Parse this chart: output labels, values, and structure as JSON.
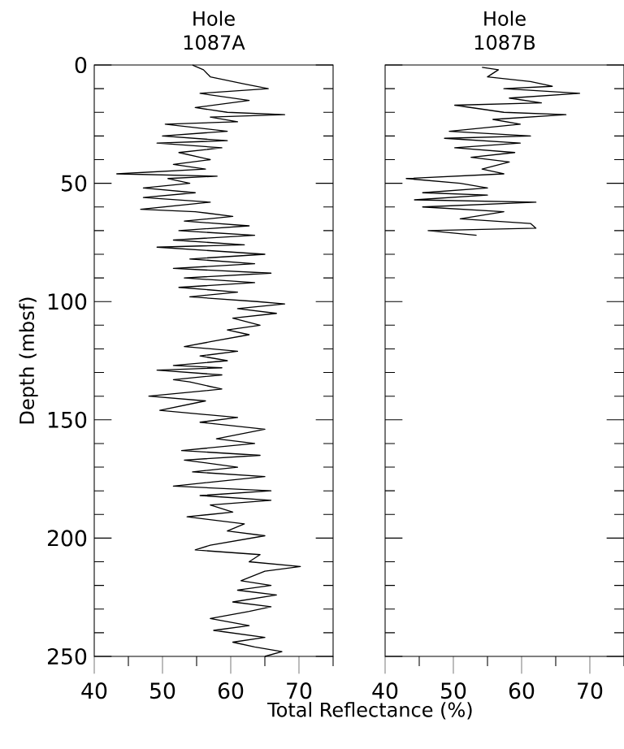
{
  "chart_data": [
    {
      "type": "line",
      "title": "Hole 1087A",
      "xlabel": "Total Reflectance (%)",
      "ylabel": "Depth (mbsf)",
      "xlim": [
        40,
        75
      ],
      "ylim": [
        250,
        0
      ],
      "xticks": [
        40,
        {
          "value": 45,
          "label": null
        },
        50,
        {
          "value": 55,
          "label": null
        },
        60,
        {
          "value": 65,
          "label": null
        },
        70,
        {
          "value": 75,
          "label": null
        }
      ],
      "yticks": [
        0,
        {
          "value": 10,
          "label": null
        },
        {
          "value": 20,
          "label": null
        },
        {
          "value": 30,
          "label": null
        },
        {
          "value": 40,
          "label": null
        },
        50,
        {
          "value": 60,
          "label": null
        },
        {
          "value": 70,
          "label": null
        },
        {
          "value": 80,
          "label": null
        },
        {
          "value": 90,
          "label": null
        },
        100,
        {
          "value": 110,
          "label": null
        },
        {
          "value": 120,
          "label": null
        },
        {
          "value": 130,
          "label": null
        },
        {
          "value": 140,
          "label": null
        },
        150,
        {
          "value": 160,
          "label": null
        },
        {
          "value": 170,
          "label": null
        },
        {
          "value": 180,
          "label": null
        },
        {
          "value": 190,
          "label": null
        },
        200,
        {
          "value": 210,
          "label": null
        },
        {
          "value": 220,
          "label": null
        },
        {
          "value": 230,
          "label": null
        },
        {
          "value": 240,
          "label": null
        },
        250
      ],
      "series": [
        {
          "color": "#000000",
          "x": [
            54.4,
            56,
            57,
            62,
            65.5,
            55.5,
            62.7,
            54.8,
            59.5,
            67.9,
            57,
            61,
            50.4,
            59.5,
            50,
            59.5,
            49.2,
            58.7,
            52.4,
            57,
            51.6,
            56.3,
            43.3,
            58,
            50.8,
            54,
            47.2,
            54.8,
            47.2,
            57,
            46.8,
            54.8,
            60.3,
            53.2,
            62.7,
            52.4,
            63.5,
            51.6,
            62,
            49.2,
            65,
            54,
            63.5,
            51.6,
            65.9,
            53.2,
            63.5,
            52.4,
            61,
            54,
            63.9,
            67.9,
            61,
            66.7,
            60.3,
            64.3,
            59.5,
            62.7,
            57,
            53.2,
            61,
            55.5,
            59.5,
            51.6,
            58.7,
            49.2,
            58.7,
            51.6,
            54,
            58.7,
            48,
            56.3,
            49.6,
            61,
            55.5,
            65,
            57.9,
            63.5,
            52.8,
            64.3,
            53.2,
            61,
            54.4,
            65,
            51.6,
            65.9,
            55.5,
            65.9,
            57,
            60.3,
            53.6,
            62,
            59.5,
            65,
            57,
            54.8,
            64.3,
            62.7,
            70.2,
            65,
            61.5,
            65.9,
            61,
            66.7,
            60.3,
            65.9,
            62.7,
            57,
            62.7,
            57.5,
            65,
            60.3,
            63.5,
            67.5,
            65
          ],
          "values": [
            0,
            2,
            5,
            8,
            10,
            12,
            15,
            18,
            20,
            21,
            22,
            24,
            25,
            28,
            30,
            32,
            33,
            35,
            37,
            40,
            42,
            44,
            46,
            47,
            48,
            50,
            52,
            54,
            56,
            58,
            61,
            62,
            64,
            66,
            68,
            70,
            72,
            74,
            76,
            77,
            80,
            82,
            84,
            86,
            88,
            90,
            92,
            94,
            96,
            98,
            100,
            101,
            103,
            105,
            107,
            110,
            112,
            114,
            117,
            119,
            121,
            123,
            125,
            127,
            128,
            129,
            131,
            133,
            134,
            137,
            140,
            142,
            146,
            149,
            151,
            154,
            158,
            160,
            163,
            165,
            167,
            170,
            172,
            174,
            178,
            180,
            182,
            184,
            186,
            189,
            191,
            194,
            197,
            199,
            203,
            205,
            207,
            210,
            212,
            214,
            218,
            220,
            222,
            224,
            227,
            229,
            231,
            234,
            237,
            239,
            242,
            244,
            246,
            248,
            250
          ]
        }
      ]
    },
    {
      "type": "line",
      "title": "Hole 1087B",
      "tick_labels": "x",
      "xlim": [
        40,
        75
      ],
      "ylim": [
        250,
        0
      ],
      "xticks": [
        40,
        {
          "value": 45,
          "label": null
        },
        50,
        {
          "value": 55,
          "label": null
        },
        60,
        {
          "value": 65,
          "label": null
        },
        70,
        {
          "value": 75,
          "label": null
        }
      ],
      "yticks": [
        0,
        {
          "value": 10,
          "label": null
        },
        {
          "value": 20,
          "label": null
        },
        {
          "value": 30,
          "label": null
        },
        {
          "value": 40,
          "label": null
        },
        50,
        {
          "value": 60,
          "label": null
        },
        {
          "value": 70,
          "label": null
        },
        {
          "value": 80,
          "label": null
        },
        {
          "value": 90,
          "label": null
        },
        100,
        {
          "value": 110,
          "label": null
        },
        {
          "value": 120,
          "label": null
        },
        {
          "value": 130,
          "label": null
        },
        {
          "value": 140,
          "label": null
        },
        150,
        {
          "value": 160,
          "label": null
        },
        {
          "value": 170,
          "label": null
        },
        {
          "value": 180,
          "label": null
        },
        {
          "value": 190,
          "label": null
        },
        200,
        {
          "value": 210,
          "label": null
        },
        {
          "value": 220,
          "label": null
        },
        {
          "value": 230,
          "label": null
        },
        {
          "value": 240,
          "label": null
        },
        250
      ],
      "series": [
        {
          "color": "#000000",
          "x": [
            54.2,
            56.6,
            55,
            61.3,
            64.5,
            57.4,
            68.5,
            58.2,
            62.9,
            50.2,
            57.4,
            66.5,
            55.8,
            59.8,
            49.4,
            61.3,
            48.7,
            59.8,
            50.2,
            59,
            52.6,
            58.2,
            54.2,
            57.4,
            43.1,
            51,
            55,
            45.5,
            55,
            44.3,
            62.1,
            45.5,
            57.4,
            51,
            61.3,
            62.1,
            46.3,
            53.4
          ],
          "values": [
            1,
            2,
            5,
            7,
            9,
            10,
            12,
            14,
            16,
            17,
            20,
            21,
            23,
            25,
            28,
            30,
            31,
            33,
            35,
            37,
            39,
            41,
            44,
            46,
            48,
            50,
            52,
            54,
            55,
            57,
            58,
            60,
            62,
            65,
            67,
            69,
            70,
            72
          ]
        }
      ]
    }
  ]
}
